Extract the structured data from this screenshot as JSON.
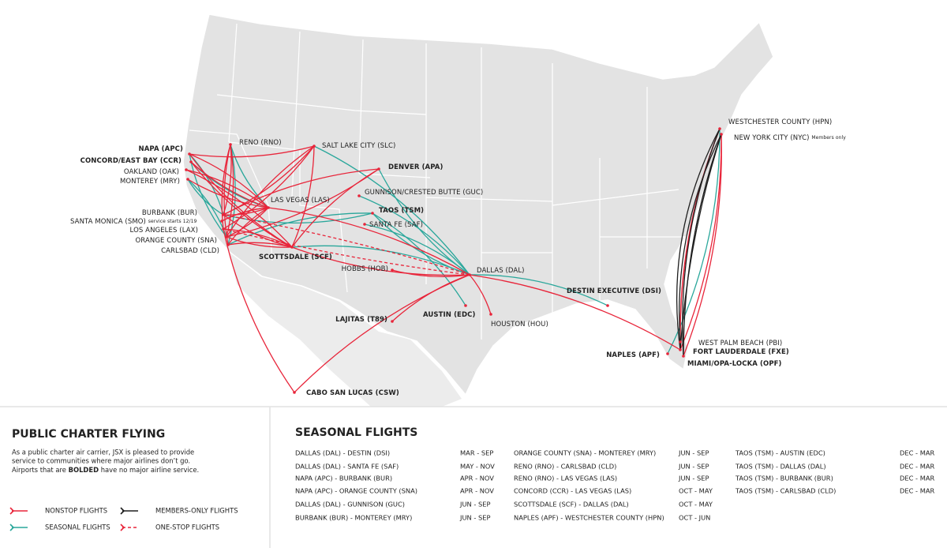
{
  "map": {
    "airports": [
      {
        "label": "NAPA (APC)",
        "bold": true
      },
      {
        "label": "CONCORD/EAST BAY (CCR)",
        "bold": true
      },
      {
        "label": "OAKLAND (OAK)",
        "bold": false
      },
      {
        "label": "MONTEREY (MRY)",
        "bold": false
      },
      {
        "label": "RENO (RNO)",
        "bold": false
      },
      {
        "label": "SALT LAKE CITY (SLC)",
        "bold": false
      },
      {
        "label": "DENVER (APA)",
        "bold": true
      },
      {
        "label": "GUNNISON/CRESTED BUTTE (GUC)",
        "bold": false
      },
      {
        "label": "LAS VEGAS (LAS)",
        "bold": false
      },
      {
        "label": "TAOS (TSM)",
        "bold": true
      },
      {
        "label": "SANTA FE (SAF)",
        "bold": false
      },
      {
        "label": "BURBANK (BUR)",
        "bold": false
      },
      {
        "label": "SANTA MONICA (SMO)",
        "bold": false,
        "note": "service starts 12/19"
      },
      {
        "label": "LOS ANGELES (LAX)",
        "bold": false
      },
      {
        "label": "ORANGE COUNTY (SNA)",
        "bold": false
      },
      {
        "label": "CARLSBAD (CLD)",
        "bold": false
      },
      {
        "label": "SCOTTSDALE (SCF)",
        "bold": true
      },
      {
        "label": "HOBBS (HOB)",
        "bold": false
      },
      {
        "label": "DALLAS (DAL)",
        "bold": false
      },
      {
        "label": "DESTIN EXECUTIVE (DSI)",
        "bold": true
      },
      {
        "label": "LAJITAS (T89)",
        "bold": true
      },
      {
        "label": "AUSTIN (EDC)",
        "bold": true
      },
      {
        "label": "HOUSTON (HOU)",
        "bold": false
      },
      {
        "label": "CABO SAN LUCAS (CSW)",
        "bold": true
      },
      {
        "label": "WESTCHESTER COUNTY (HPN)",
        "bold": false
      },
      {
        "label": "NEW YORK CITY (NYC)",
        "bold": false,
        "note": "Members only"
      },
      {
        "label": "WEST PALM BEACH (PBI)",
        "bold": false
      },
      {
        "label": "FORT LAUDERDALE (FXE)",
        "bold": true
      },
      {
        "label": "NAPLES (APF)",
        "bold": true
      },
      {
        "label": "MIAMI/OPA-LOCKA (OPF)",
        "bold": true
      }
    ]
  },
  "panel": {
    "title": "PUBLIC CHARTER FLYING",
    "description": {
      "line1": "As a public charter air carrier, JSX is pleased to provide",
      "line2": "service to communities where major airlines don’t go.",
      "line3_start": "Airports that are ",
      "line3_bold": "BOLDED",
      "line3_end": " have no major airline service."
    },
    "legend": [
      {
        "name": "NONSTOP FLIGHTS",
        "color": "#e8253a"
      },
      {
        "name": "SEASONAL FLIGHTS",
        "color": "#2aa79b"
      },
      {
        "name": "MEMBERS-ONLY FLIGHTS",
        "color": "#1e1e1e"
      },
      {
        "name": "ONE-STOP FLIGHTS",
        "color": "#e8253a",
        "dashed": true
      }
    ]
  },
  "seasonal": {
    "title": "SEASONAL FLIGHTS",
    "columns": [
      [
        {
          "route": "DALLAS (DAL) - DESTIN (DSI)",
          "months": "MAR - SEP"
        },
        {
          "route": "DALLAS (DAL) - SANTA FE (SAF)",
          "months": "MAY - NOV"
        },
        {
          "route": "NAPA (APC) - BURBANK (BUR)",
          "months": "APR - NOV"
        },
        {
          "route": "NAPA (APC) - ORANGE COUNTY (SNA)",
          "months": "APR - NOV"
        },
        {
          "route": "DALLAS (DAL) - GUNNISON (GUC)",
          "months": "JUN - SEP"
        },
        {
          "route": "BURBANK (BUR) - MONTEREY (MRY)",
          "months": "JUN - SEP"
        }
      ],
      [
        {
          "route": "ORANGE COUNTY (SNA) - MONTEREY (MRY)",
          "months": "JUN - SEP"
        },
        {
          "route": "RENO (RNO) - CARLSBAD (CLD)",
          "months": "JUN - SEP"
        },
        {
          "route": "RENO (RNO) - LAS VEGAS (LAS)",
          "months": "JUN - SEP"
        },
        {
          "route": "CONCORD (CCR) - LAS VEGAS (LAS)",
          "months": "OCT - MAY"
        },
        {
          "route": "SCOTTSDALE (SCF) - DALLAS (DAL)",
          "months": "OCT - MAY"
        },
        {
          "route": "NAPLES (APF) - WESTCHESTER COUNTY (HPN)",
          "months": "OCT - JUN"
        }
      ],
      [
        {
          "route": "TAOS (TSM) - AUSTIN (EDC)",
          "months": "DEC - MAR"
        },
        {
          "route": "TAOS (TSM) - DALLAS (DAL)",
          "months": "DEC - MAR"
        },
        {
          "route": "TAOS (TSM) - BURBANK (BUR)",
          "months": "DEC - MAR"
        },
        {
          "route": "TAOS (TSM) - CARLSBAD (CLD)",
          "months": "DEC - MAR"
        }
      ]
    ]
  }
}
